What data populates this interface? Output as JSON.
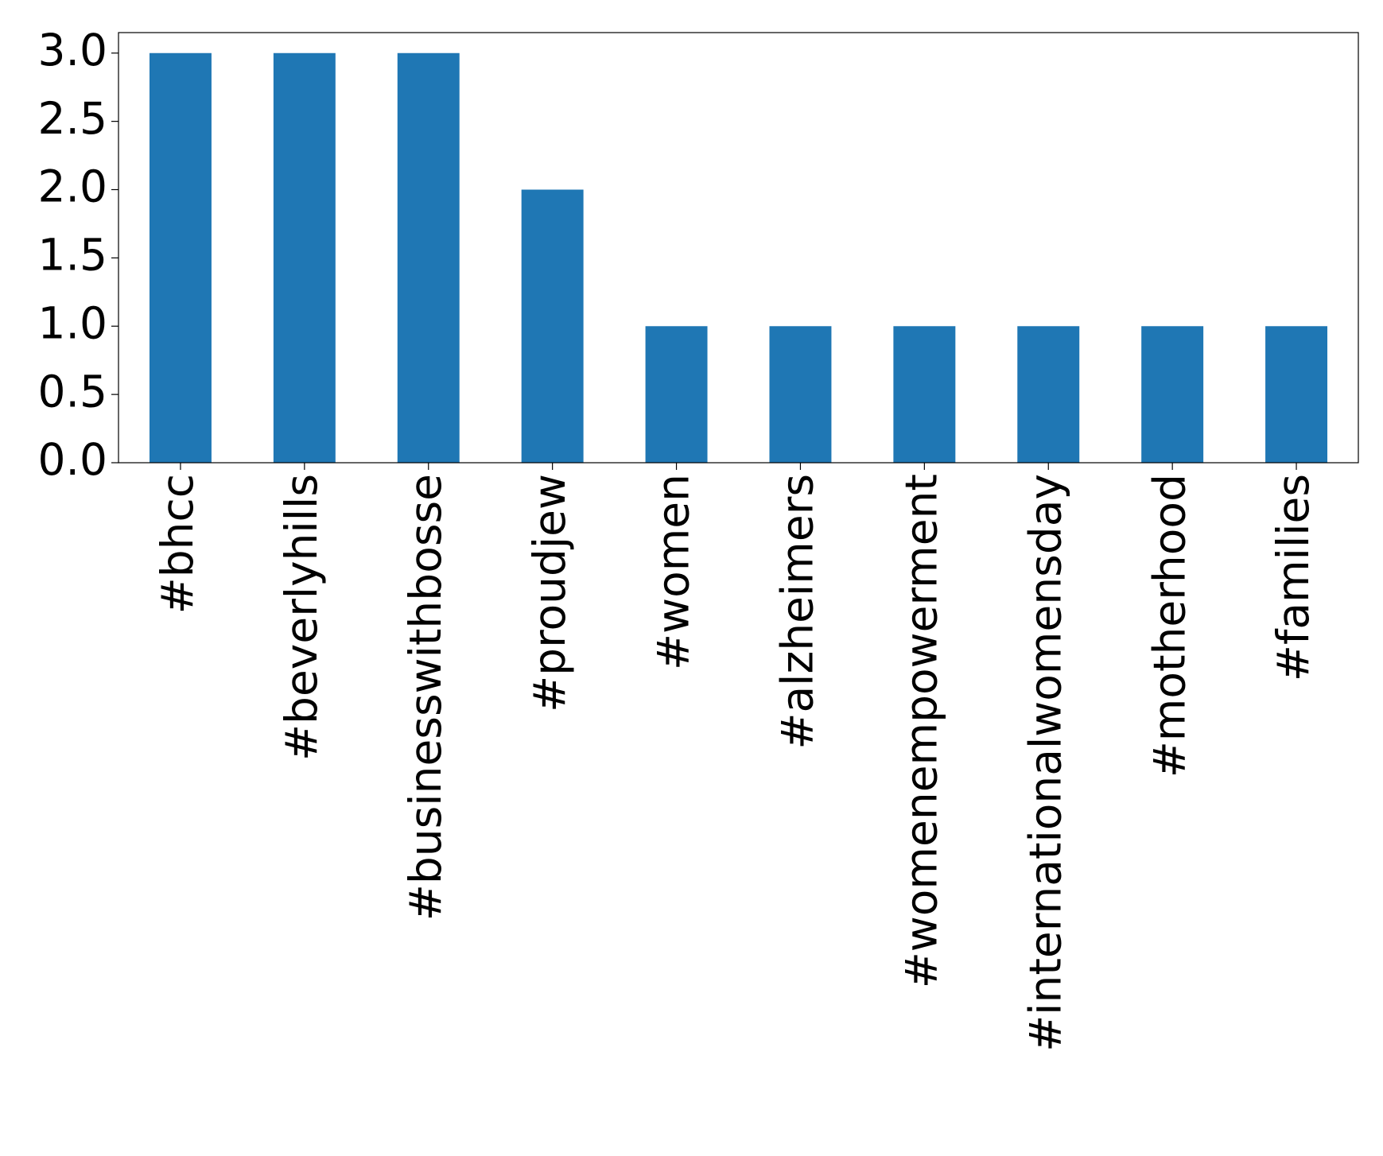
{
  "chart_data": {
    "type": "bar",
    "categories": [
      "#bhcc",
      "#beverlyhills",
      "#businesswithbosse",
      "#proudjew",
      "#women",
      "#alzheimers",
      "#womenempowerment",
      "#internationalwomensday",
      "#motherhood",
      "#families"
    ],
    "values": [
      3,
      3,
      3,
      2,
      1,
      1,
      1,
      1,
      1,
      1
    ],
    "color": "#1f77b4",
    "ylim": [
      0,
      3.15
    ],
    "yticks": [
      {
        "value": 0,
        "label": "0.0"
      },
      {
        "value": 0.5,
        "label": "0.5"
      },
      {
        "value": 1,
        "label": "1.0"
      },
      {
        "value": 1.5,
        "label": "1.5"
      },
      {
        "value": 2,
        "label": "2.0"
      },
      {
        "value": 2.5,
        "label": "2.5"
      },
      {
        "value": 3,
        "label": "3.0"
      }
    ],
    "grid": false
  }
}
